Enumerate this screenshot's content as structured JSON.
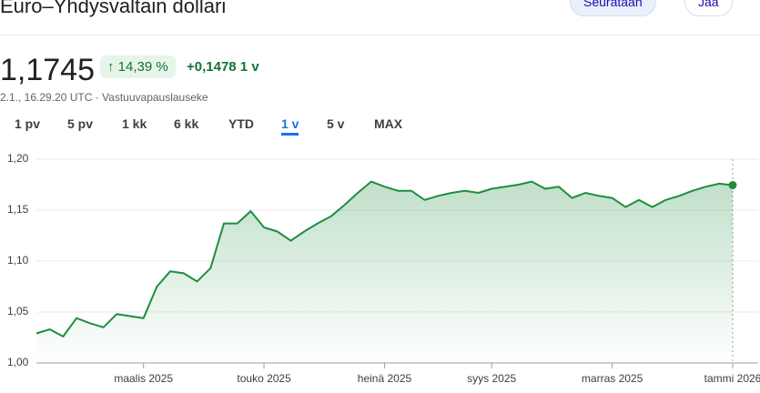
{
  "header": {
    "title": "Euro–Yhdysvaltain dollari",
    "follow_button": "Seurataan",
    "share_button": "Jaa"
  },
  "quote": {
    "price": "1,1745",
    "change_percent": "14,39 %",
    "change_abs": "+0,1478 1 v",
    "timestamp": "2.1., 16.29.20 UTC · Vastuuvapauslauseke"
  },
  "tabs": {
    "items": [
      "1 pv",
      "5 pv",
      "1 kk",
      "6 kk",
      "YTD",
      "1 v",
      "5 v",
      "MAX"
    ],
    "selected": 5
  },
  "chart_data": {
    "type": "line",
    "x": [
      null,
      null,
      null,
      null,
      null,
      null,
      null,
      null,
      "maalis 2025",
      null,
      null,
      null,
      null,
      null,
      null,
      null,
      null,
      "touko 2025",
      null,
      null,
      null,
      null,
      null,
      null,
      null,
      null,
      "heinä 2025",
      null,
      null,
      null,
      null,
      null,
      null,
      null,
      "syys 2025",
      null,
      null,
      null,
      null,
      null,
      null,
      null,
      null,
      "marras 2025",
      null,
      null,
      null,
      null,
      null,
      null,
      null,
      null,
      "tammi 2026"
    ],
    "series": [
      {
        "color": "#1e8e3e",
        "values": [
          1.029,
          1.033,
          1.026,
          1.044,
          1.039,
          1.035,
          1.048,
          1.046,
          1.044,
          1.075,
          1.09,
          1.088,
          1.08,
          1.093,
          1.137,
          1.137,
          1.149,
          1.133,
          1.129,
          1.12,
          1.129,
          1.137,
          1.144,
          1.155,
          1.167,
          1.178,
          1.173,
          1.169,
          1.169,
          1.16,
          1.164,
          1.167,
          1.169,
          1.167,
          1.171,
          1.173,
          1.175,
          1.178,
          1.171,
          1.173,
          1.162,
          1.167,
          1.164,
          1.162,
          1.153,
          1.16,
          1.153,
          1.16,
          1.164,
          1.169,
          1.173,
          1.176,
          1.1745
        ]
      }
    ],
    "ylim": [
      1.0,
      1.2
    ],
    "yticks": [
      {
        "value": 1.0,
        "label": "1,00"
      },
      {
        "value": 1.05,
        "label": "1,05"
      },
      {
        "value": 1.1,
        "label": "1,10"
      },
      {
        "value": 1.15,
        "label": "1,15"
      },
      {
        "value": 1.2,
        "label": "1,20"
      }
    ],
    "grid": true
  }
}
